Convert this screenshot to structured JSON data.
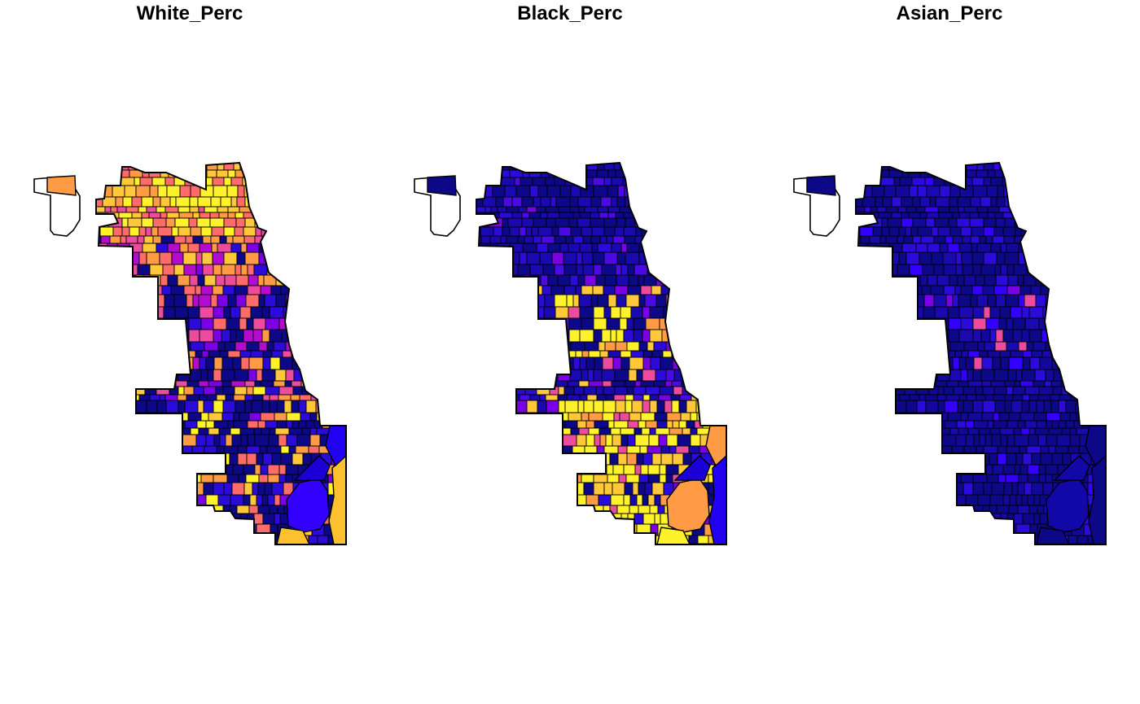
{
  "panels": [
    {
      "title": "White_Perc",
      "palette": [
        "#0D0887",
        "#2A0BD9",
        "#7A00E6",
        "#B40BD0",
        "#EC4C9E",
        "#FF6A6A",
        "#FF9A45",
        "#FFC83A",
        "#FFF22B"
      ],
      "zones": [
        {
          "y0": 0.0,
          "y1": 0.18,
          "weights": [
            0,
            0,
            0,
            0,
            1,
            3,
            3,
            4,
            5
          ]
        },
        {
          "y0": 0.18,
          "y1": 0.32,
          "weights": [
            2,
            1,
            1,
            2,
            2,
            3,
            3,
            2,
            0
          ]
        },
        {
          "y0": 0.32,
          "y1": 0.5,
          "weights": [
            5,
            3,
            2,
            2,
            2,
            2,
            1,
            0,
            0
          ]
        },
        {
          "y0": 0.5,
          "y1": 0.62,
          "weights": [
            6,
            3,
            1,
            1,
            1,
            2,
            2,
            1,
            1
          ]
        },
        {
          "y0": 0.62,
          "y1": 1.0,
          "weights": [
            8,
            3,
            1,
            0,
            0,
            1,
            1,
            1,
            1
          ]
        }
      ],
      "big_blocks": [
        {
          "name": "lake-blob",
          "color": "#3300FF"
        },
        {
          "name": "east-strip",
          "color": "#FFC02E"
        },
        {
          "name": "south-tail",
          "color": "#FFC02E"
        },
        {
          "name": "corner-a",
          "color": "#2200F0"
        },
        {
          "name": "corner-b",
          "color": "#1A00D6"
        }
      ]
    },
    {
      "title": "Black_Perc",
      "palette": [
        "#0D0887",
        "#1A08B0",
        "#2A0BD9",
        "#4A0AE5",
        "#7A00E6",
        "#EC4C9E",
        "#FF9A45",
        "#FFC83A",
        "#FFF22B"
      ],
      "zones": [
        {
          "y0": 0.0,
          "y1": 0.32,
          "weights": [
            8,
            4,
            2,
            1,
            1,
            0,
            0,
            0,
            0
          ]
        },
        {
          "y0": 0.32,
          "y1": 0.5,
          "weights": [
            3,
            2,
            1,
            1,
            1,
            1,
            1,
            2,
            4
          ]
        },
        {
          "y0": 0.5,
          "y1": 0.62,
          "weights": [
            5,
            3,
            2,
            1,
            1,
            1,
            0,
            1,
            1
          ]
        },
        {
          "y0": 0.62,
          "y1": 1.0,
          "weights": [
            2,
            1,
            1,
            0,
            1,
            1,
            1,
            3,
            8
          ]
        }
      ],
      "big_blocks": [
        {
          "name": "lake-blob",
          "color": "#FF9A45"
        },
        {
          "name": "east-strip",
          "color": "#2200F0"
        },
        {
          "name": "south-tail",
          "color": "#FFF22B"
        },
        {
          "name": "corner-a",
          "color": "#FF9A45"
        },
        {
          "name": "corner-b",
          "color": "#1A00D6"
        }
      ]
    },
    {
      "title": "Asian_Perc",
      "palette": [
        "#0D0887",
        "#12089A",
        "#1A08B0",
        "#2A0BD9",
        "#3300FF",
        "#7A00E6",
        "#EC4C9E",
        "#FF6A6A",
        "#FFF22B"
      ],
      "zones": [
        {
          "y0": 0.0,
          "y1": 0.32,
          "weights": [
            9,
            4,
            3,
            2,
            1,
            0,
            0,
            0,
            0
          ]
        },
        {
          "y0": 0.32,
          "y1": 0.52,
          "weights": [
            6,
            3,
            3,
            2,
            2,
            1,
            1,
            0,
            0
          ]
        },
        {
          "y0": 0.52,
          "y1": 1.0,
          "weights": [
            10,
            3,
            2,
            1,
            1,
            0,
            0,
            0,
            0
          ]
        }
      ],
      "big_blocks": [
        {
          "name": "lake-blob",
          "color": "#1208A8"
        },
        {
          "name": "east-strip",
          "color": "#0D0887"
        },
        {
          "name": "south-tail",
          "color": "#0D0887"
        },
        {
          "name": "corner-a",
          "color": "#0D0887"
        },
        {
          "name": "corner-b",
          "color": "#1208A8"
        }
      ]
    }
  ]
}
